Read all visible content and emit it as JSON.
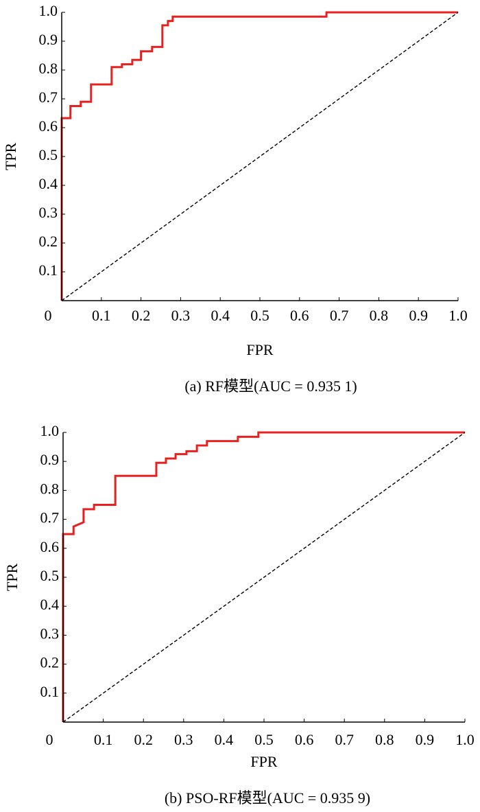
{
  "chart_data": [
    {
      "type": "line",
      "caption": "(a) RF模型(AUC = 0.935 1)",
      "xlabel": "FPR",
      "ylabel": "TPR",
      "xlim": [
        0,
        1
      ],
      "ylim": [
        0,
        1
      ],
      "xticks": [
        0,
        0.1,
        0.2,
        0.3,
        0.4,
        0.5,
        0.6,
        0.7,
        0.8,
        0.9,
        {
          "value": 1,
          "label": "1.0"
        }
      ],
      "yticks": [
        0.1,
        0.2,
        0.3,
        0.4,
        0.5,
        0.6,
        0.7,
        0.8,
        0.9,
        {
          "value": 1,
          "label": "1.0"
        }
      ],
      "grid": false,
      "series": [
        {
          "color": "#e8201e",
          "linestyle": "solid",
          "x": [
            0,
            0,
            0.022,
            0.022,
            0.048,
            0.048,
            0.074,
            0.074,
            0.126,
            0.126,
            0.152,
            0.152,
            0.178,
            0.178,
            0.2,
            0.2,
            0.228,
            0.228,
            0.254,
            0.254,
            0.268,
            0.268,
            0.28,
            0.28,
            0.668,
            0.668,
            1
          ],
          "values": [
            0,
            0.633,
            0.633,
            0.675,
            0.675,
            0.69,
            0.69,
            0.75,
            0.75,
            0.81,
            0.81,
            0.82,
            0.82,
            0.835,
            0.835,
            0.865,
            0.865,
            0.88,
            0.88,
            0.955,
            0.955,
            0.97,
            0.97,
            0.985,
            0.985,
            1,
            1
          ]
        },
        {
          "color": "#000000",
          "linestyle": "dashed",
          "x": [
            0,
            1
          ],
          "values": [
            0,
            1
          ]
        }
      ]
    },
    {
      "type": "line",
      "caption": "(b) PSO-RF模型(AUC = 0.935 9)",
      "xlabel": "FPR",
      "ylabel": "TPR",
      "xlim": [
        0,
        1
      ],
      "ylim": [
        0,
        1
      ],
      "xticks": [
        0,
        0.1,
        0.2,
        0.3,
        0.4,
        0.5,
        0.6,
        0.7,
        0.8,
        0.9,
        {
          "value": 1,
          "label": "1.0"
        }
      ],
      "yticks": [
        0.1,
        0.2,
        0.3,
        0.4,
        0.5,
        0.6,
        0.7,
        0.8,
        0.9,
        {
          "value": 1,
          "label": "1.0"
        }
      ],
      "grid": false,
      "series": [
        {
          "color": "#e8201e",
          "linestyle": "solid",
          "x": [
            0,
            0,
            0.026,
            0.026,
            0.051,
            0.051,
            0.077,
            0.077,
            0.13,
            0.13,
            0.232,
            0.232,
            0.256,
            0.256,
            0.28,
            0.28,
            0.307,
            0.307,
            0.333,
            0.333,
            0.358,
            0.358,
            0.435,
            0.435,
            0.486,
            0.486,
            1
          ],
          "values": [
            0,
            0.649,
            0.649,
            0.675,
            0.69,
            0.735,
            0.735,
            0.75,
            0.75,
            0.85,
            0.85,
            0.895,
            0.895,
            0.91,
            0.91,
            0.925,
            0.925,
            0.935,
            0.935,
            0.955,
            0.955,
            0.97,
            0.97,
            0.985,
            0.985,
            1,
            1
          ]
        },
        {
          "color": "#000000",
          "linestyle": "dashed",
          "x": [
            0,
            1
          ],
          "values": [
            0,
            1
          ]
        }
      ]
    }
  ]
}
